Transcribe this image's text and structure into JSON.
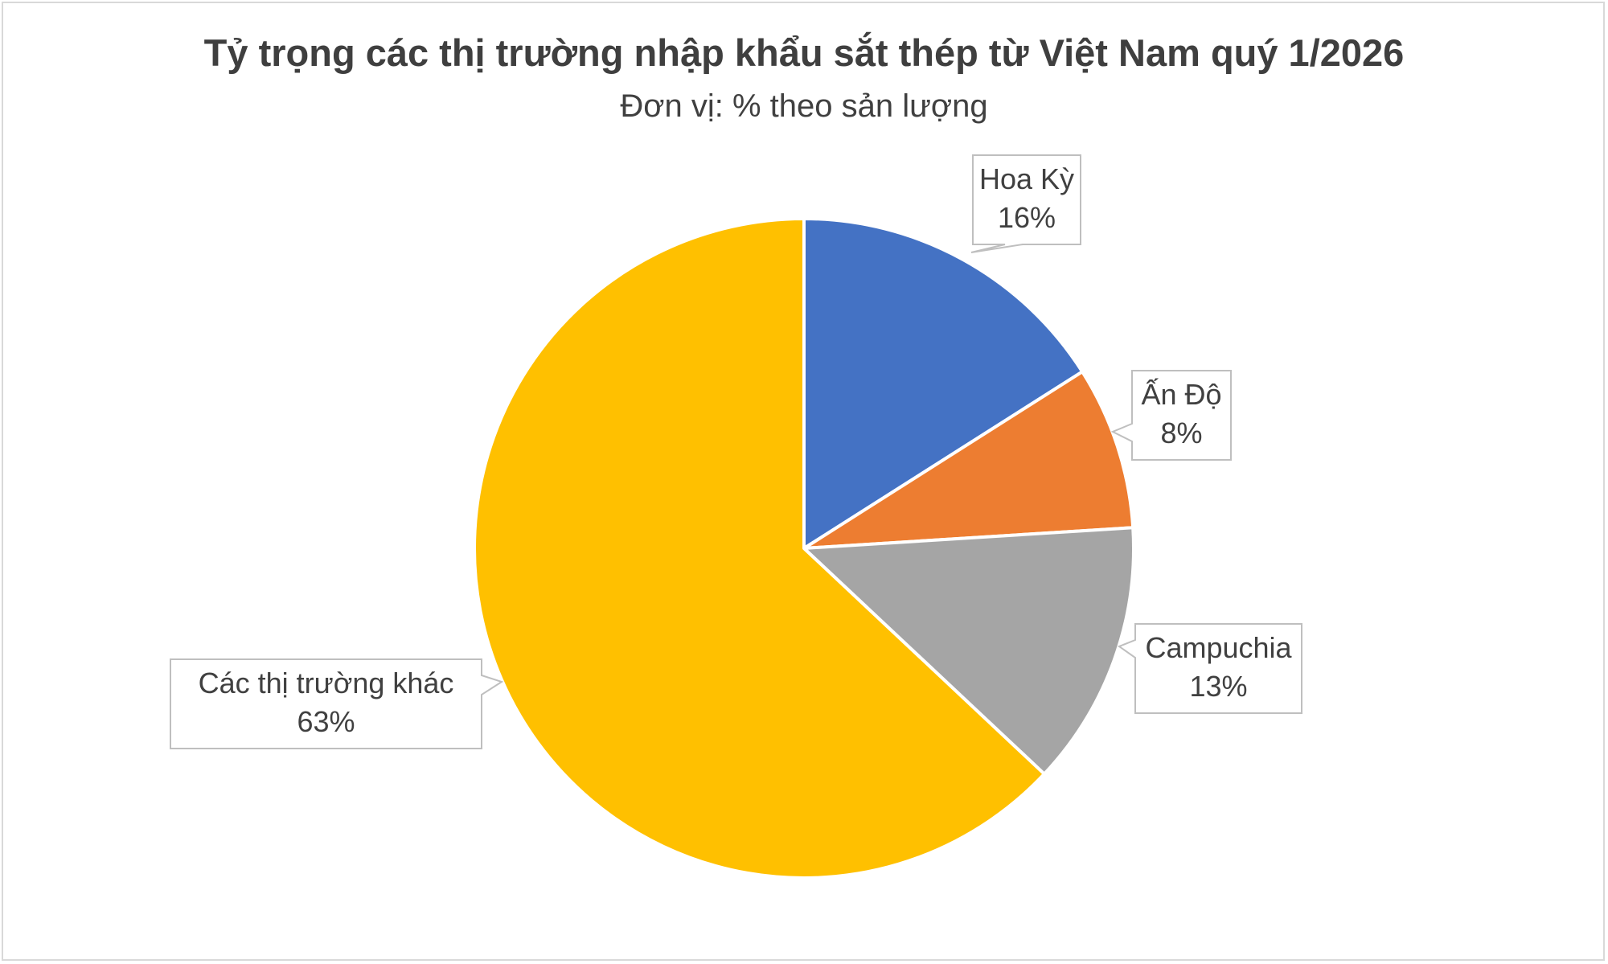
{
  "chart_data": {
    "type": "pie",
    "title": "Tỷ trọng các thị trường nhập khẩu sắt thép từ Việt Nam quý 1/2026",
    "subtitle": "Đơn vị: % theo sản lượng",
    "start_angle_deg": 0,
    "direction": "clockwise",
    "slices": [
      {
        "label": "Hoa Kỳ",
        "value": 16,
        "value_label": "16%",
        "color": "#4472C4"
      },
      {
        "label": "Ấn Độ",
        "value": 8,
        "value_label": "8%",
        "color": "#ED7D31"
      },
      {
        "label": "Campuchia",
        "value": 13,
        "value_label": "13%",
        "color": "#A5A5A5"
      },
      {
        "label": "Các thị trường khác",
        "value": 63,
        "value_label": "63%",
        "color": "#FFC000"
      }
    ]
  }
}
